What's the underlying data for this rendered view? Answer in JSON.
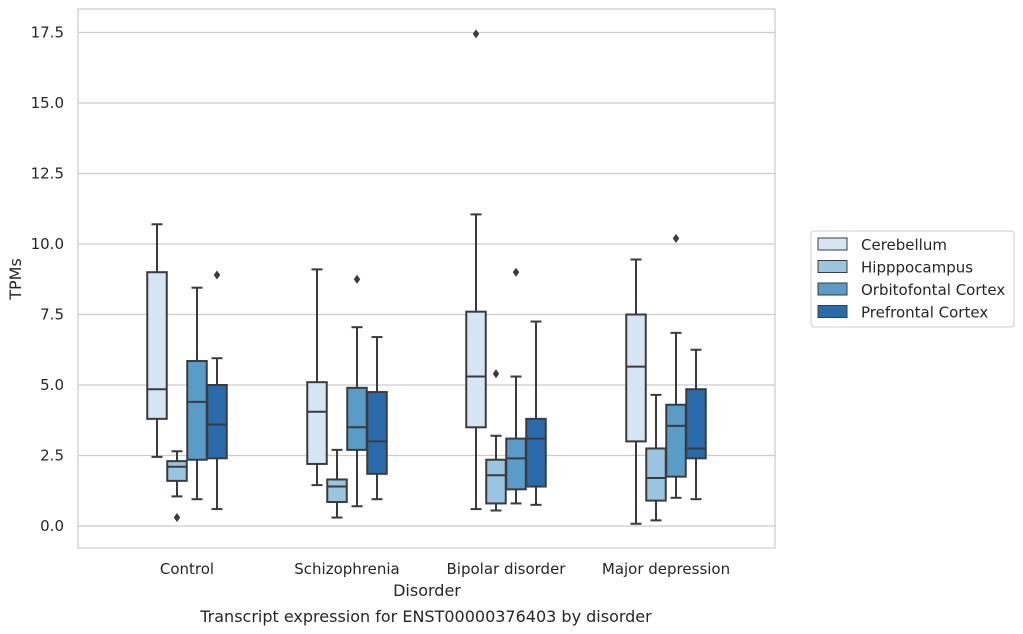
{
  "caption": "Transcript expression for ENST00000376403 by disorder",
  "chart_data": {
    "type": "box",
    "title": "",
    "xlabel": "Disorder",
    "ylabel": "TPMs",
    "ylim": [
      -0.75,
      18.3
    ],
    "yticks": [
      0.0,
      2.5,
      5.0,
      7.5,
      10.0,
      12.5,
      15.0,
      17.5
    ],
    "ytick_labels": [
      "0.0",
      "2.5",
      "5.0",
      "7.5",
      "10.0",
      "12.5",
      "15.0",
      "17.5"
    ],
    "grid": "horizontal",
    "legend_position": "right",
    "categories": [
      "Control",
      "Schizophrenia",
      "Bipolar disorder",
      "Major depression"
    ],
    "series": [
      {
        "name": "Cerebellum",
        "color": "#d6e5f4",
        "boxes": [
          {
            "whislo": 2.45,
            "q1": 3.8,
            "med": 4.85,
            "q3": 9.0,
            "whishi": 10.7,
            "fliers": []
          },
          {
            "whislo": 1.45,
            "q1": 2.2,
            "med": 4.05,
            "q3": 5.1,
            "whishi": 9.1,
            "fliers": []
          },
          {
            "whislo": 0.6,
            "q1": 3.5,
            "med": 5.3,
            "q3": 7.6,
            "whishi": 11.05,
            "fliers": [
              17.45
            ]
          },
          {
            "whislo": 0.08,
            "q1": 3.0,
            "med": 5.65,
            "q3": 7.5,
            "whishi": 9.45,
            "fliers": []
          }
        ]
      },
      {
        "name": "Hipppocampus",
        "color": "#9ac5e0",
        "boxes": [
          {
            "whislo": 1.05,
            "q1": 1.6,
            "med": 2.1,
            "q3": 2.3,
            "whishi": 2.65,
            "fliers": [
              0.3
            ]
          },
          {
            "whislo": 0.3,
            "q1": 0.85,
            "med": 1.4,
            "q3": 1.65,
            "whishi": 2.7,
            "fliers": []
          },
          {
            "whislo": 0.55,
            "q1": 0.8,
            "med": 1.8,
            "q3": 2.35,
            "whishi": 3.2,
            "fliers": [
              5.4
            ]
          },
          {
            "whislo": 0.2,
            "q1": 0.9,
            "med": 1.7,
            "q3": 2.75,
            "whishi": 4.65,
            "fliers": []
          }
        ]
      },
      {
        "name": "Orbitofontal Cortex",
        "color": "#5a9cc8",
        "boxes": [
          {
            "whislo": 0.95,
            "q1": 2.35,
            "med": 4.4,
            "q3": 5.85,
            "whishi": 8.45,
            "fliers": []
          },
          {
            "whislo": 0.7,
            "q1": 2.7,
            "med": 3.5,
            "q3": 4.9,
            "whishi": 7.05,
            "fliers": [
              8.75
            ]
          },
          {
            "whislo": 0.8,
            "q1": 1.3,
            "med": 2.4,
            "q3": 3.1,
            "whishi": 5.3,
            "fliers": [
              9.0
            ]
          },
          {
            "whislo": 1.0,
            "q1": 1.75,
            "med": 3.55,
            "q3": 4.3,
            "whishi": 6.85,
            "fliers": [
              10.2
            ]
          }
        ]
      },
      {
        "name": "Prefrontal Cortex",
        "color": "#2a6cab",
        "boxes": [
          {
            "whislo": 0.6,
            "q1": 2.4,
            "med": 3.6,
            "q3": 5.0,
            "whishi": 5.95,
            "fliers": [
              8.9
            ]
          },
          {
            "whislo": 0.95,
            "q1": 1.85,
            "med": 3.0,
            "q3": 4.75,
            "whishi": 6.7,
            "fliers": []
          },
          {
            "whislo": 0.75,
            "q1": 1.4,
            "med": 3.1,
            "q3": 3.8,
            "whishi": 7.25,
            "fliers": []
          },
          {
            "whislo": 0.95,
            "q1": 2.4,
            "med": 2.75,
            "q3": 4.85,
            "whishi": 6.25,
            "fliers": []
          }
        ]
      }
    ]
  }
}
